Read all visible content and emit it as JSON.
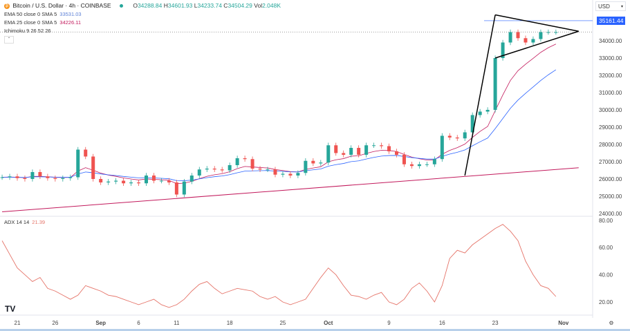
{
  "header": {
    "symbol": "Bitcoin / U.S. Dollar · 4h · COINBASE",
    "coin_glyph": "₿",
    "open_label": "O",
    "open": "34288.84",
    "high_label": "H",
    "high": "34601.93",
    "low_label": "L",
    "low": "34233.74",
    "close_label": "C",
    "close": "34504.29",
    "vol_label": "Vol",
    "vol": "2.048K",
    "indicators": [
      {
        "label": "EMA 50 close 0 SMA 5",
        "value": "33531.03",
        "color": "#2962ff"
      },
      {
        "label": "EMA 25 close 0 SMA 5",
        "value": "34226.11",
        "color": "#c2185b"
      },
      {
        "label": "Ichimoku 9 26 52 26",
        "value": "",
        "color": "#333333"
      }
    ],
    "collapse_glyph": "⌃"
  },
  "currency": "USD",
  "price_tag": "35161.44",
  "adx_legend": {
    "label": "ADX 14 14",
    "value": "21.39"
  },
  "logo": "TV",
  "settings_icon": "⚙",
  "chart_data": [
    {
      "type": "candlestick",
      "title": "Bitcoin / U.S. Dollar · 4h · COINBASE",
      "dates": [
        "08-19",
        "08-20",
        "08-21",
        "08-22",
        "08-23",
        "08-24",
        "08-25",
        "08-26",
        "08-27",
        "08-28",
        "08-29",
        "08-30",
        "08-31",
        "09-01",
        "09-02",
        "09-03",
        "09-04",
        "09-05",
        "09-06",
        "09-07",
        "09-08",
        "09-09",
        "09-10",
        "09-11",
        "09-12",
        "09-13",
        "09-14",
        "09-15",
        "09-16",
        "09-17",
        "09-18",
        "09-19",
        "09-20",
        "09-21",
        "09-22",
        "09-23",
        "09-24",
        "09-25",
        "09-26",
        "09-27",
        "09-28",
        "09-29",
        "09-30",
        "10-01",
        "10-02",
        "10-03",
        "10-04",
        "10-05",
        "10-06",
        "10-07",
        "10-08",
        "10-09",
        "10-10",
        "10-11",
        "10-12",
        "10-13",
        "10-14",
        "10-15",
        "10-16",
        "10-17",
        "10-18",
        "10-19",
        "10-20",
        "10-21",
        "10-22",
        "10-23",
        "10-24",
        "10-25",
        "10-26",
        "10-27",
        "10-28",
        "10-29",
        "10-30",
        "10-31"
      ],
      "close": [
        26100,
        26150,
        26050,
        26000,
        26400,
        26150,
        26050,
        26000,
        26050,
        26100,
        27700,
        27300,
        26000,
        25800,
        25850,
        25900,
        25750,
        25800,
        25750,
        26200,
        25900,
        25900,
        25800,
        25100,
        25850,
        26200,
        26550,
        26600,
        26550,
        26500,
        26800,
        27200,
        27150,
        26600,
        26550,
        26550,
        26250,
        26300,
        26200,
        26350,
        27050,
        26900,
        26950,
        27950,
        27500,
        27400,
        27800,
        27400,
        27950,
        27950,
        27900,
        27600,
        27400,
        26850,
        26750,
        26850,
        26850,
        27150,
        28500,
        28400,
        28350,
        28700,
        29700,
        29900,
        30000,
        33000,
        33900,
        34500,
        34150,
        33900,
        34100,
        34500,
        34500,
        34500
      ],
      "x_ticks": [
        "21",
        "26",
        "Sep",
        "6",
        "11",
        "18",
        "25",
        "Oct",
        "9",
        "16",
        "23",
        "Nov"
      ],
      "y_ticks": [
        "34000.00",
        "33000.00",
        "32000.00",
        "31000.00",
        "30000.00",
        "29000.00",
        "28000.00",
        "27000.00",
        "26000.00",
        "25000.00",
        "24000.00"
      ],
      "ylim": [
        24000,
        36000
      ],
      "up_color": "#26a69a",
      "down_color": "#ef5350",
      "ema_colors": {
        "ema50": "#2962ff",
        "ema25": "#c2185b"
      },
      "drawings": [
        {
          "from": [
            "08-19",
            24100
          ],
          "to": [
            "11-03",
            26650
          ],
          "color": "#c2185b"
        },
        {
          "from": [
            "10-19",
            26200
          ],
          "to": [
            "10-23",
            35500
          ],
          "color": "#000000"
        },
        {
          "from": [
            "10-23",
            35500
          ],
          "to": [
            "11-03",
            34550
          ],
          "color": "#000000"
        },
        {
          "from": [
            "10-23",
            33000
          ],
          "to": [
            "11-03",
            34550
          ],
          "color": "#000000"
        }
      ]
    },
    {
      "type": "line",
      "title": "ADX 14 14",
      "dates": [
        "08-19",
        "08-20",
        "08-21",
        "08-22",
        "08-23",
        "08-24",
        "08-25",
        "08-26",
        "08-27",
        "08-28",
        "08-29",
        "08-30",
        "08-31",
        "09-01",
        "09-02",
        "09-03",
        "09-04",
        "09-05",
        "09-06",
        "09-07",
        "09-08",
        "09-09",
        "09-10",
        "09-11",
        "09-12",
        "09-13",
        "09-14",
        "09-15",
        "09-16",
        "09-17",
        "09-18",
        "09-19",
        "09-20",
        "09-21",
        "09-22",
        "09-23",
        "09-24",
        "09-25",
        "09-26",
        "09-27",
        "09-28",
        "09-29",
        "09-30",
        "10-01",
        "10-02",
        "10-03",
        "10-04",
        "10-05",
        "10-06",
        "10-07",
        "10-08",
        "10-09",
        "10-10",
        "10-11",
        "10-12",
        "10-13",
        "10-14",
        "10-15",
        "10-16",
        "10-17",
        "10-18",
        "10-19",
        "10-20",
        "10-21",
        "10-22",
        "10-23",
        "10-24",
        "10-25",
        "10-26",
        "10-27",
        "10-28",
        "10-29",
        "10-30",
        "10-31"
      ],
      "values": [
        65,
        55,
        45,
        40,
        35,
        38,
        30,
        28,
        25,
        22,
        25,
        32,
        30,
        28,
        25,
        24,
        22,
        20,
        18,
        20,
        22,
        18,
        16,
        18,
        22,
        28,
        33,
        35,
        30,
        26,
        28,
        30,
        29,
        28,
        24,
        22,
        24,
        20,
        18,
        20,
        22,
        30,
        38,
        45,
        40,
        32,
        25,
        24,
        22,
        25,
        27,
        20,
        18,
        22,
        30,
        34,
        28,
        20,
        32,
        52,
        58,
        56,
        62,
        66,
        70,
        74,
        77,
        72,
        65,
        50,
        40,
        32,
        30,
        24
      ],
      "y_ticks": [
        "80.00",
        "60.00",
        "40.00",
        "20.00"
      ],
      "ylim": [
        14,
        82
      ],
      "color": "#e57368"
    }
  ]
}
